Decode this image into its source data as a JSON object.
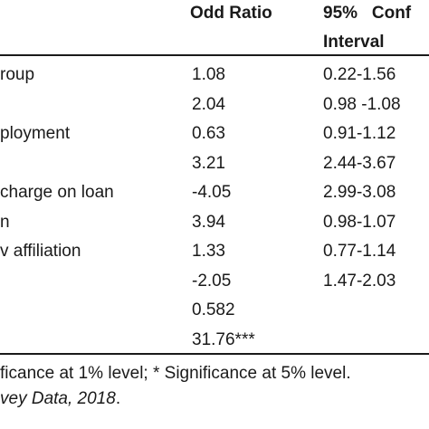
{
  "header": {
    "odd_ratio": "Odd Ratio",
    "ci_line1": "95%   Conf",
    "ci_line2": "Interval"
  },
  "rows": [
    {
      "variable": "roup",
      "odd_ratio": "1.08",
      "ci": "0.22-1.56"
    },
    {
      "variable": "",
      "odd_ratio": "2.04",
      "ci": "0.98 -1.08"
    },
    {
      "variable": "ployment",
      "odd_ratio": "0.63",
      "ci": "0.91-1.12"
    },
    {
      "variable": "",
      "odd_ratio": "3.21",
      "ci": "2.44-3.67"
    },
    {
      "variable": "charge on loan",
      "odd_ratio": "-4.05",
      "ci": "2.99-3.08"
    },
    {
      "variable": "n",
      "odd_ratio": "3.94",
      "ci": "0.98-1.07"
    },
    {
      "variable": "v affiliation",
      "odd_ratio": "1.33",
      "ci": "0.77-1.14"
    },
    {
      "variable": "",
      "odd_ratio": "-2.05",
      "ci": "1.47-2.03"
    },
    {
      "variable": "",
      "odd_ratio": "0.582",
      "ci": ""
    },
    {
      "variable": "",
      "odd_ratio": "31.76***",
      "ci": ""
    }
  ],
  "footnotes": {
    "significance": "ficance at 1% level; * Significance at 5% level.",
    "source_italic": "vey Data, 2018",
    "source_end": "."
  }
}
